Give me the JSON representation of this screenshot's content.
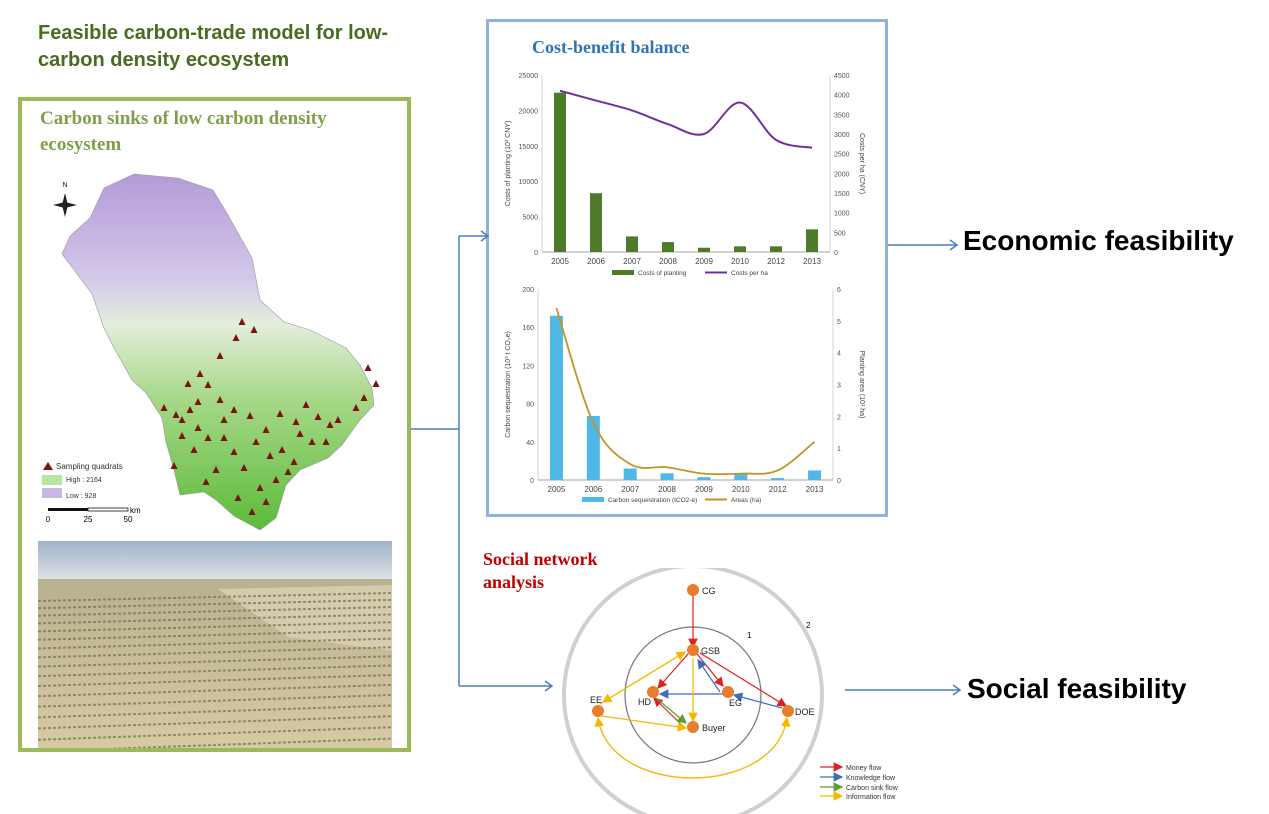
{
  "main_title": "Feasible carbon-trade model for low-carbon density ecosystem",
  "left_panel": {
    "title": "Carbon sinks of low carbon density ecosystem",
    "north_label": "N",
    "legend": {
      "sampling": "Sampling quadrats",
      "high": "High : 2164",
      "low": "Low : 928"
    },
    "scale": {
      "t0": "0",
      "t1": "25",
      "t2": "50",
      "unit": "km"
    }
  },
  "cost_benefit": {
    "title": "Cost-benefit balance"
  },
  "chart_data": [
    {
      "type": "bar",
      "categories": [
        "2005",
        "2006",
        "2007",
        "2008",
        "2009",
        "2010",
        "2012",
        "2013"
      ],
      "series": [
        {
          "name": "Costs of planting",
          "type": "bar",
          "axis": "left",
          "values": [
            22500,
            8300,
            2200,
            1400,
            600,
            800,
            800,
            3200
          ]
        },
        {
          "name": "Costs per ha",
          "type": "line",
          "axis": "right",
          "values": [
            4100,
            3850,
            3600,
            3250,
            3000,
            3800,
            2850,
            2650
          ]
        }
      ],
      "ylabel": "Costs of planting (10³ CNY)",
      "y2label": "Costs per ha (CNY)",
      "ylim": [
        0,
        25000
      ],
      "y2lim": [
        0,
        4500
      ],
      "yticks": [
        "0",
        "5000",
        "10000",
        "15000",
        "20000",
        "25000"
      ],
      "y2ticks": [
        "0",
        "500",
        "1000",
        "1500",
        "2000",
        "2500",
        "3000",
        "3500",
        "4000",
        "4500"
      ],
      "colors": {
        "bar": "#4f7a2a",
        "line": "#7030a0"
      },
      "legend_position": "bottom"
    },
    {
      "type": "bar",
      "categories": [
        "2005",
        "2006",
        "2007",
        "2008",
        "2009",
        "2010",
        "2012",
        "2013"
      ],
      "series": [
        {
          "name": "Carbon sequestration (tCO2-e)",
          "type": "bar",
          "axis": "left",
          "values": [
            172,
            67,
            12,
            7,
            3,
            6,
            2,
            10
          ]
        },
        {
          "name": "Areas (ha)",
          "type": "line",
          "axis": "right",
          "values": [
            5.4,
            1.8,
            0.5,
            0.4,
            0.2,
            0.2,
            0.3,
            1.2
          ]
        }
      ],
      "ylabel": "Carbon sequestration (10³ t CO₂e)",
      "y2label": "Planting area (10³ ha)",
      "ylim": [
        0,
        200
      ],
      "y2lim": [
        0,
        6
      ],
      "yticks": [
        "0",
        "40",
        "80",
        "120",
        "160",
        "200"
      ],
      "y2ticks": [
        "0",
        "1",
        "2",
        "3",
        "4",
        "5",
        "6"
      ],
      "colors": {
        "bar": "#4fb8e6",
        "line": "#c0962a"
      },
      "legend_position": "bottom"
    }
  ],
  "labels": {
    "economic": "Economic feasibility",
    "social": "Social feasibility"
  },
  "sna": {
    "title": "Social network analysis",
    "ring1": "1",
    "ring2": "2",
    "nodes": {
      "cg": "CG",
      "gsb": "GSB",
      "hd": "HD",
      "eg": "EG",
      "ee": "EE",
      "doe": "DOE",
      "buyer": "Buyer"
    },
    "legend": [
      "Money flow",
      "Knowledge flow",
      "Carbon sink flow",
      "Information flow"
    ],
    "colors": {
      "money": "#e0201c",
      "knowledge": "#3f6db8",
      "carbon": "#5a9e34",
      "info": "#f5b700",
      "node": "#e87d2e"
    }
  }
}
